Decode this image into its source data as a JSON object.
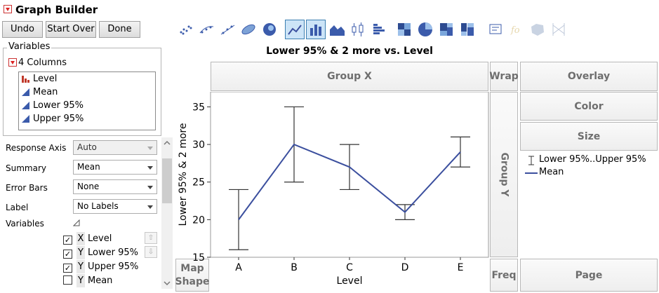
{
  "app": {
    "title": "Graph Builder"
  },
  "buttons": {
    "undo": "Undo",
    "start_over": "Start Over",
    "done": "Done"
  },
  "toolbar": {
    "icons": [
      "points-icon",
      "contour-icon",
      "line-of-fit-icon",
      "ellipse-icon",
      "density-icon",
      "line-icon",
      "bar-icon",
      "area-icon",
      "box-plot-icon",
      "histogram-icon",
      "heatmap-icon",
      "pie-icon",
      "treemap-icon",
      "mosaic-icon",
      "caption-box-icon",
      "formula-icon",
      "map-shapes-icon",
      "parallel-icon"
    ],
    "selected": [
      "line-icon",
      "bar-icon"
    ]
  },
  "variables": {
    "legend": "Variables",
    "count_label": "4 Columns",
    "columns": [
      {
        "name": "Level",
        "icon": "nominal-icon"
      },
      {
        "name": "Mean",
        "icon": "continuous-icon"
      },
      {
        "name": "Lower 95%",
        "icon": "continuous-icon"
      },
      {
        "name": "Upper 95%",
        "icon": "continuous-icon"
      }
    ]
  },
  "properties": {
    "response_axis": {
      "label": "Response Axis",
      "value": "Auto"
    },
    "summary": {
      "label": "Summary",
      "value": "Mean"
    },
    "error_bars": {
      "label": "Error Bars",
      "value": "None"
    },
    "label": {
      "label": "Label",
      "value": "No Labels"
    },
    "variables_label": "Variables",
    "var_rows": [
      {
        "checked": true,
        "role": "X",
        "name": "Level"
      },
      {
        "checked": true,
        "role": "Y",
        "name": "Lower 95%"
      },
      {
        "checked": true,
        "role": "Y",
        "name": "Upper 95%"
      },
      {
        "checked": false,
        "role": "Y",
        "name": "Mean"
      }
    ]
  },
  "zones": {
    "group_x": "Group X",
    "group_y": "Group Y",
    "wrap": "Wrap",
    "overlay": "Overlay",
    "color": "Color",
    "size": "Size",
    "freq": "Freq",
    "page": "Page",
    "map_shape": [
      "Map",
      "Shape"
    ]
  },
  "legend_items": {
    "interval": "Lower 95%..Upper 95%",
    "mean": "Mean"
  },
  "colors": {
    "series": "#3b4f9e",
    "accent": "#3c7fb1",
    "zone_text": "#6e6e6e"
  },
  "chart_data": {
    "type": "line",
    "title": "Lower 95% & 2 more vs. Level",
    "xlabel": "Level",
    "ylabel": "Lower 95% & 2 more",
    "categories": [
      "A",
      "B",
      "C",
      "D",
      "E"
    ],
    "ylim": [
      15,
      37
    ],
    "yticks": [
      15,
      20,
      25,
      30,
      35
    ],
    "series": [
      {
        "name": "Mean",
        "values": [
          20,
          30,
          27,
          21,
          29
        ]
      }
    ],
    "intervals": {
      "name": "Lower 95%..Upper 95%",
      "lower": [
        16,
        25,
        24,
        20,
        27
      ],
      "upper": [
        24,
        35,
        30,
        22,
        31
      ]
    },
    "grid": false
  }
}
